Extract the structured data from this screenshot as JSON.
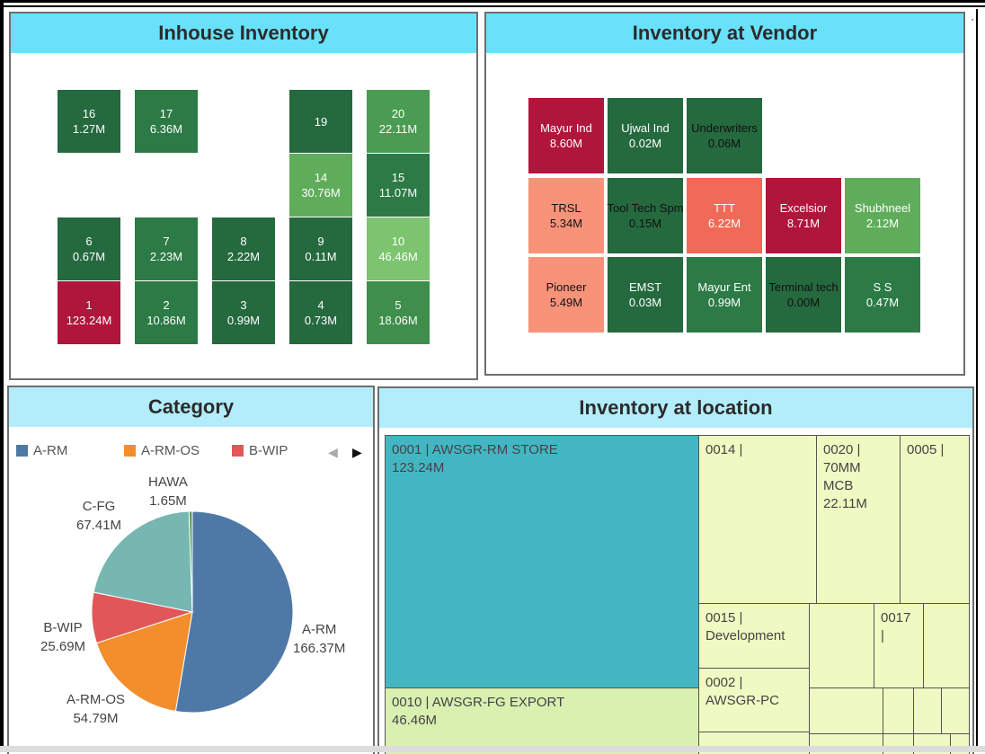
{
  "inhouse": {
    "title": "Inhouse Inventory",
    "tiles": [
      {
        "id": "16",
        "value": "1.27M",
        "color": "#25693f"
      },
      {
        "id": "17",
        "value": "6.36M",
        "color": "#2c7a45"
      },
      {
        "id": "19",
        "value": "",
        "color": "#25693f"
      },
      {
        "id": "20",
        "value": "22.11M",
        "color": "#4a9c52"
      },
      {
        "id": "14",
        "value": "30.76M",
        "color": "#5fad5a"
      },
      {
        "id": "15",
        "value": "11.07M",
        "color": "#2c7a45"
      },
      {
        "id": "6",
        "value": "0.67M",
        "color": "#25693f"
      },
      {
        "id": "7",
        "value": "2.23M",
        "color": "#2c7a45"
      },
      {
        "id": "8",
        "value": "2.22M",
        "color": "#25693f"
      },
      {
        "id": "9",
        "value": "0.11M",
        "color": "#25693f"
      },
      {
        "id": "10",
        "value": "46.46M",
        "color": "#7cc46f"
      },
      {
        "id": "1",
        "value": "123.24M",
        "color": "#b0153c"
      },
      {
        "id": "2",
        "value": "10.86M",
        "color": "#2c7a45"
      },
      {
        "id": "3",
        "value": "0.99M",
        "color": "#25693f"
      },
      {
        "id": "4",
        "value": "0.73M",
        "color": "#25693f"
      },
      {
        "id": "5",
        "value": "18.06M",
        "color": "#3f8f4c"
      }
    ]
  },
  "vendor": {
    "title": "Inventory at Vendor",
    "tiles": [
      {
        "name": "Mayur Ind",
        "value": "8.60M",
        "color": "#b0153c",
        "dark": false
      },
      {
        "name": "Ujwal Ind",
        "value": "0.02M",
        "color": "#25693f",
        "dark": false
      },
      {
        "name": "Underwriters",
        "value": "0.06M",
        "color": "#25693f",
        "dark": true
      },
      {
        "name": "TRSL",
        "value": "5.34M",
        "color": "#f8937a",
        "dark": true
      },
      {
        "name": "Tool Tech Spm",
        "value": "0.15M",
        "color": "#25693f",
        "dark": true
      },
      {
        "name": "TTT",
        "value": "6.22M",
        "color": "#f16a57",
        "dark": false
      },
      {
        "name": "Excelsior",
        "value": "8.71M",
        "color": "#b0153c",
        "dark": false
      },
      {
        "name": "Shubhneel",
        "value": "2.12M",
        "color": "#5fad5a",
        "dark": false
      },
      {
        "name": "Pioneer",
        "value": "5.49M",
        "color": "#f8937a",
        "dark": true
      },
      {
        "name": "EMST",
        "value": "0.03M",
        "color": "#25693f",
        "dark": false
      },
      {
        "name": "Mayur Ent",
        "value": "0.99M",
        "color": "#2c7a45",
        "dark": false
      },
      {
        "name": "Terminal tech",
        "value": "0.00M",
        "color": "#25693f",
        "dark": true
      },
      {
        "name": "S S",
        "value": "0.47M",
        "color": "#2c7a45",
        "dark": false
      }
    ]
  },
  "category": {
    "title": "Category",
    "legend": [
      {
        "label": "A-RM",
        "color": "#4e79a7"
      },
      {
        "label": "A-RM-OS",
        "color": "#f28e2b"
      },
      {
        "label": "B-WIP",
        "color": "#e15759"
      }
    ],
    "prev_arrow": "◀",
    "next_arrow": "▶",
    "labels": {
      "arm": {
        "name": "A-RM",
        "value": "166.37M"
      },
      "armos": {
        "name": "A-RM-OS",
        "value": "54.79M"
      },
      "bwip": {
        "name": "B-WIP",
        "value": "25.69M"
      },
      "cfg": {
        "name": "C-FG",
        "value": "67.41M"
      },
      "hawa": {
        "name": "HAWA",
        "value": "1.65M"
      }
    }
  },
  "chart_data": {
    "type": "pie",
    "slices": [
      {
        "label": "A-RM",
        "value": 166.37,
        "color": "#4e79a7"
      },
      {
        "label": "A-RM-OS",
        "value": 54.79,
        "color": "#f28e2b"
      },
      {
        "label": "B-WIP",
        "value": 25.69,
        "color": "#e15759"
      },
      {
        "label": "C-FG",
        "value": 67.41,
        "color": "#76b7b2"
      },
      {
        "label": "HAWA",
        "value": 1.65,
        "color": "#59a14f"
      }
    ]
  },
  "location": {
    "title": "Inventory at location",
    "cells": {
      "c0001": {
        "line1": "0001 |  AWSGR-RM STORE",
        "line2": "123.24M"
      },
      "c0010": {
        "line1": "0010 |  AWSGR-FG EXPORT",
        "line2": "46.46M"
      },
      "c0014": {
        "line1": "0014 |"
      },
      "c0020": {
        "line1": "0020 |",
        "line2": "70MM",
        "line3": "MCB",
        "line4": "22.11M"
      },
      "c0005": {
        "line1": "0005 |"
      },
      "c0015": {
        "line1": "0015 |",
        "line2": "Development"
      },
      "c0017": {
        "line1": "0017",
        "line2": "|"
      },
      "c0002": {
        "line1": "0002 |",
        "line2": "AWSGR-PC"
      }
    },
    "colors": {
      "teal": "#43b6c4",
      "light": "#eff9c2",
      "green": "#d9f0b0"
    }
  }
}
